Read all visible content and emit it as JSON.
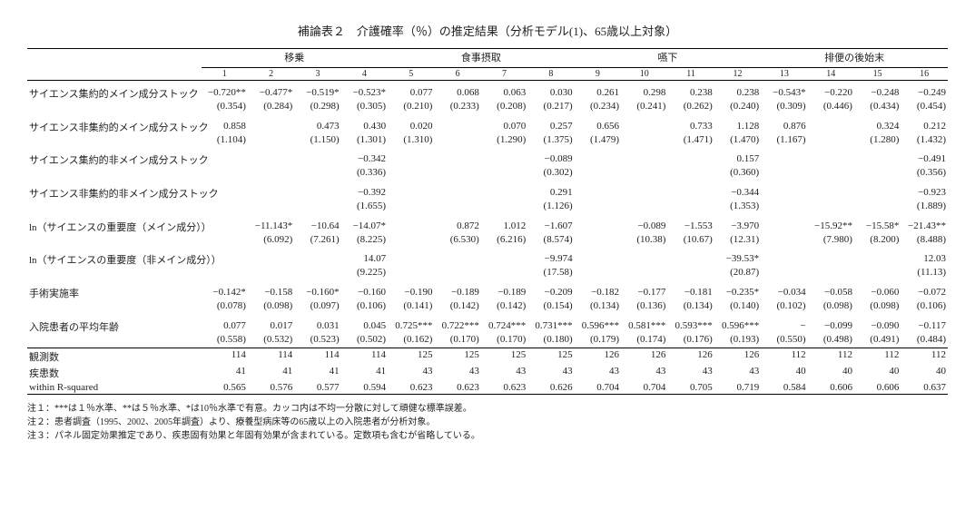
{
  "title": "補論表２　介護確率（％）の推定結果（分析モデル(1)、65歳以上対象）",
  "groups": [
    "移乗",
    "食事摂取",
    "嚥下",
    "排便の後始末"
  ],
  "cols": [
    "1",
    "2",
    "3",
    "4",
    "5",
    "6",
    "7",
    "8",
    "9",
    "10",
    "11",
    "12",
    "13",
    "14",
    "15",
    "16"
  ],
  "rows": [
    {
      "label": "サイエンス集約的メイン成分ストック",
      "v": [
        "−0.720**",
        "−0.477*",
        "−0.519*",
        "−0.523*",
        "0.077",
        "0.068",
        "0.063",
        "0.030",
        "0.261",
        "0.298",
        "0.238",
        "0.238",
        "−0.543*",
        "−0.220",
        "−0.248",
        "−0.249"
      ],
      "s": [
        "(0.354)",
        "(0.284)",
        "(0.298)",
        "(0.305)",
        "(0.210)",
        "(0.233)",
        "(0.208)",
        "(0.217)",
        "(0.234)",
        "(0.241)",
        "(0.262)",
        "(0.240)",
        "(0.309)",
        "(0.446)",
        "(0.434)",
        "(0.454)"
      ]
    },
    {
      "label": "サイエンス非集約的メイン成分ストック",
      "v": [
        "0.858",
        "",
        "0.473",
        "0.430",
        "0.020",
        "",
        "0.070",
        "0.257",
        "0.656",
        "",
        "0.733",
        "1.128",
        "0.876",
        "",
        "0.324",
        "0.212"
      ],
      "s": [
        "(1.104)",
        "",
        "(1.150)",
        "(1.301)",
        "(1.310)",
        "",
        "(1.290)",
        "(1.375)",
        "(1.479)",
        "",
        "(1.471)",
        "(1.470)",
        "(1.167)",
        "",
        "(1.280)",
        "(1.432)"
      ]
    },
    {
      "label": "サイエンス集約的非メイン成分ストック",
      "v": [
        "",
        "",
        "",
        "−0.342",
        "",
        "",
        "",
        "−0.089",
        "",
        "",
        "",
        "0.157",
        "",
        "",
        "",
        "−0.491"
      ],
      "s": [
        "",
        "",
        "",
        "(0.336)",
        "",
        "",
        "",
        "(0.302)",
        "",
        "",
        "",
        "(0.360)",
        "",
        "",
        "",
        "(0.356)"
      ]
    },
    {
      "label": "サイエンス非集約的非メイン成分ストック",
      "v": [
        "",
        "",
        "",
        "−0.392",
        "",
        "",
        "",
        "0.291",
        "",
        "",
        "",
        "−0.344",
        "",
        "",
        "",
        "−0.923"
      ],
      "s": [
        "",
        "",
        "",
        "(1.655)",
        "",
        "",
        "",
        "(1.126)",
        "",
        "",
        "",
        "(1.353)",
        "",
        "",
        "",
        "(1.889)"
      ]
    },
    {
      "label": "ln（サイエンスの重要度（メイン成分））",
      "v": [
        "",
        "−11.143*",
        "−10.64",
        "−14.07*",
        "",
        "0.872",
        "1.012",
        "−1.607",
        "",
        "−0.089",
        "−1.553",
        "−3.970",
        "",
        "−15.92**",
        "−15.58*",
        "−21.43**"
      ],
      "s": [
        "",
        "(6.092)",
        "(7.261)",
        "(8.225)",
        "",
        "(6.530)",
        "(6.216)",
        "(8.574)",
        "",
        "(10.38)",
        "(10.67)",
        "(12.31)",
        "",
        "(7.980)",
        "(8.200)",
        "(8.488)"
      ]
    },
    {
      "label": "ln（サイエンスの重要度（非メイン成分））",
      "v": [
        "",
        "",
        "",
        "14.07",
        "",
        "",
        "",
        "−9.974",
        "",
        "",
        "",
        "−39.53*",
        "",
        "",
        "",
        "12.03"
      ],
      "s": [
        "",
        "",
        "",
        "(9.225)",
        "",
        "",
        "",
        "(17.58)",
        "",
        "",
        "",
        "(20.87)",
        "",
        "",
        "",
        "(11.13)"
      ]
    },
    {
      "label": "手術実施率",
      "v": [
        "−0.142*",
        "−0.158",
        "−0.160*",
        "−0.160",
        "−0.190",
        "−0.189",
        "−0.189",
        "−0.209",
        "−0.182",
        "−0.177",
        "−0.181",
        "−0.235*",
        "−0.034",
        "−0.058",
        "−0.060",
        "−0.072"
      ],
      "s": [
        "(0.078)",
        "(0.098)",
        "(0.097)",
        "(0.106)",
        "(0.141)",
        "(0.142)",
        "(0.142)",
        "(0.154)",
        "(0.134)",
        "(0.136)",
        "(0.134)",
        "(0.140)",
        "(0.102)",
        "(0.098)",
        "(0.098)",
        "(0.106)"
      ]
    },
    {
      "label": "入院患者の平均年齢",
      "v": [
        "0.077",
        "0.017",
        "0.031",
        "0.045",
        "0.725***",
        "0.722***",
        "0.724***",
        "0.731***",
        "0.596***",
        "0.581***",
        "0.593***",
        "0.596***",
        "−",
        "−0.099",
        "−0.090",
        "−0.117"
      ],
      "s": [
        "(0.558)",
        "(0.532)",
        "(0.523)",
        "(0.502)",
        "(0.162)",
        "(0.170)",
        "(0.170)",
        "(0.180)",
        "(0.179)",
        "(0.174)",
        "(0.176)",
        "(0.193)",
        "(0.550)",
        "(0.498)",
        "(0.491)",
        "(0.484)"
      ]
    }
  ],
  "footer": [
    {
      "label": "観測数",
      "v": [
        "114",
        "114",
        "114",
        "114",
        "125",
        "125",
        "125",
        "125",
        "126",
        "126",
        "126",
        "126",
        "112",
        "112",
        "112",
        "112"
      ]
    },
    {
      "label": "疾患数",
      "v": [
        "41",
        "41",
        "41",
        "41",
        "43",
        "43",
        "43",
        "43",
        "43",
        "43",
        "43",
        "43",
        "40",
        "40",
        "40",
        "40"
      ]
    },
    {
      "label": "within R-squared",
      "v": [
        "0.565",
        "0.576",
        "0.577",
        "0.594",
        "0.623",
        "0.623",
        "0.623",
        "0.626",
        "0.704",
        "0.704",
        "0.705",
        "0.719",
        "0.584",
        "0.606",
        "0.606",
        "0.637"
      ]
    }
  ],
  "notes": [
    "注１：***は１％水準、**は５％水準、*は10％水準で有意。カッコ内は不均一分散に対して頑健な標準誤差。",
    "注２：患者調査（1995、2002、2005年調査）より、療養型病床等の65歳以上の入院患者が分析対象。",
    "注３：パネル固定効果推定であり、疾患固有効果と年固有効果が含まれている。定数項も含むが省略している。"
  ]
}
